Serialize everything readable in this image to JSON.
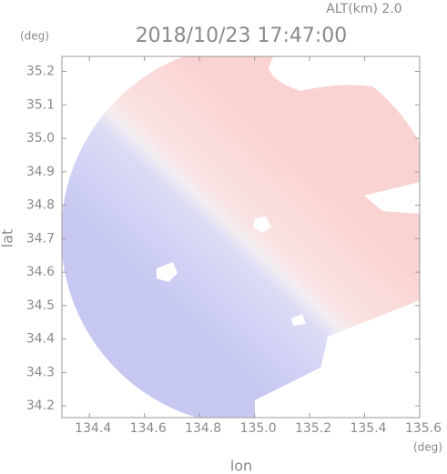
{
  "chart_data": {
    "type": "radar-map",
    "title": "2018/10/23 17:47:00",
    "subtitle": "ALT(km) 2.0",
    "x_label": "lon",
    "y_label": "lat",
    "x_unit": "(deg)",
    "y_unit": "(deg)",
    "xlim": [
      134.3,
      135.6
    ],
    "ylim": [
      34.165,
      35.245
    ],
    "xticks": [
      134.4,
      134.6,
      134.8,
      {
        "value": 135,
        "label": "135.0"
      },
      135.2,
      135.4,
      135.6
    ],
    "yticks": [
      34.2,
      34.3,
      34.4,
      34.5,
      34.6,
      34.7,
      34.8,
      34.9,
      {
        "value": 35,
        "label": "35.0"
      },
      35.1,
      35.2
    ]
  }
}
